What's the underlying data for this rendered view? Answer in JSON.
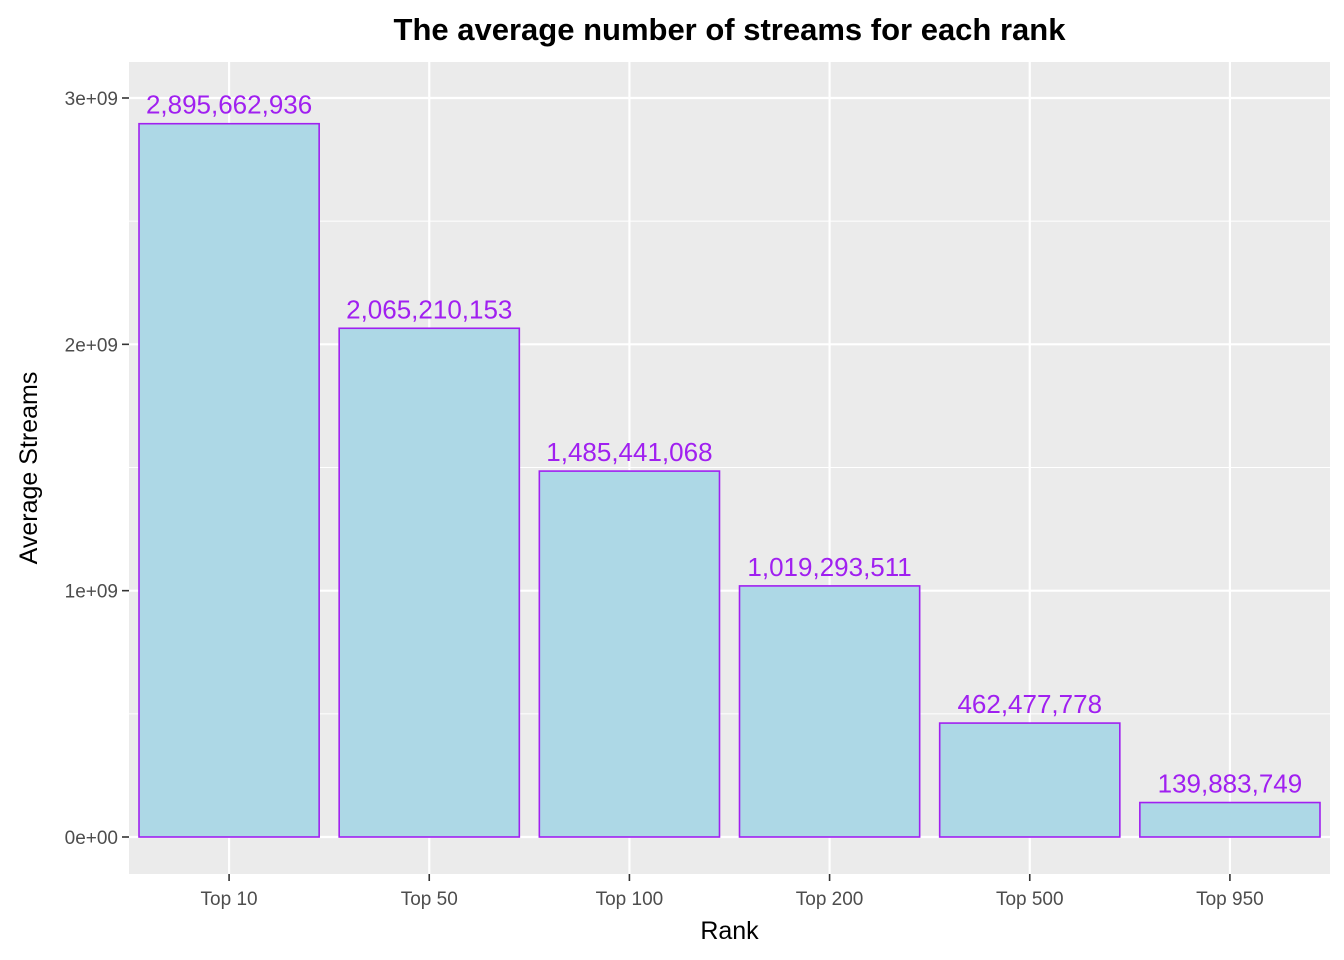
{
  "chart_data": {
    "type": "bar",
    "title": "The average number of streams for each rank",
    "xlabel": "Rank",
    "ylabel": "Average Streams",
    "categories": [
      "Top 10",
      "Top 50",
      "Top 100",
      "Top 200",
      "Top 500",
      "Top 950"
    ],
    "values": [
      2895662936,
      2065210153,
      1485441068,
      1019293511,
      462477778,
      139883749
    ],
    "value_labels": [
      "2,895,662,936",
      "2,065,210,153",
      "1,485,441,068",
      "1,019,293,511",
      "462,477,778",
      "139,883,749"
    ],
    "y_ticks": [
      0,
      1000000000,
      2000000000,
      3000000000
    ],
    "y_tick_labels": [
      "0e+00",
      "1e+09",
      "2e+09",
      "3e+09"
    ],
    "ylim": [
      -150000000,
      3150000000
    ],
    "grid": true,
    "legend": "none",
    "colors": {
      "bar_fill": "#add8e6",
      "bar_outline": "#a020f0",
      "data_label": "#a020f0",
      "panel_background": "#ebebeb",
      "grid": "#ffffff"
    }
  }
}
